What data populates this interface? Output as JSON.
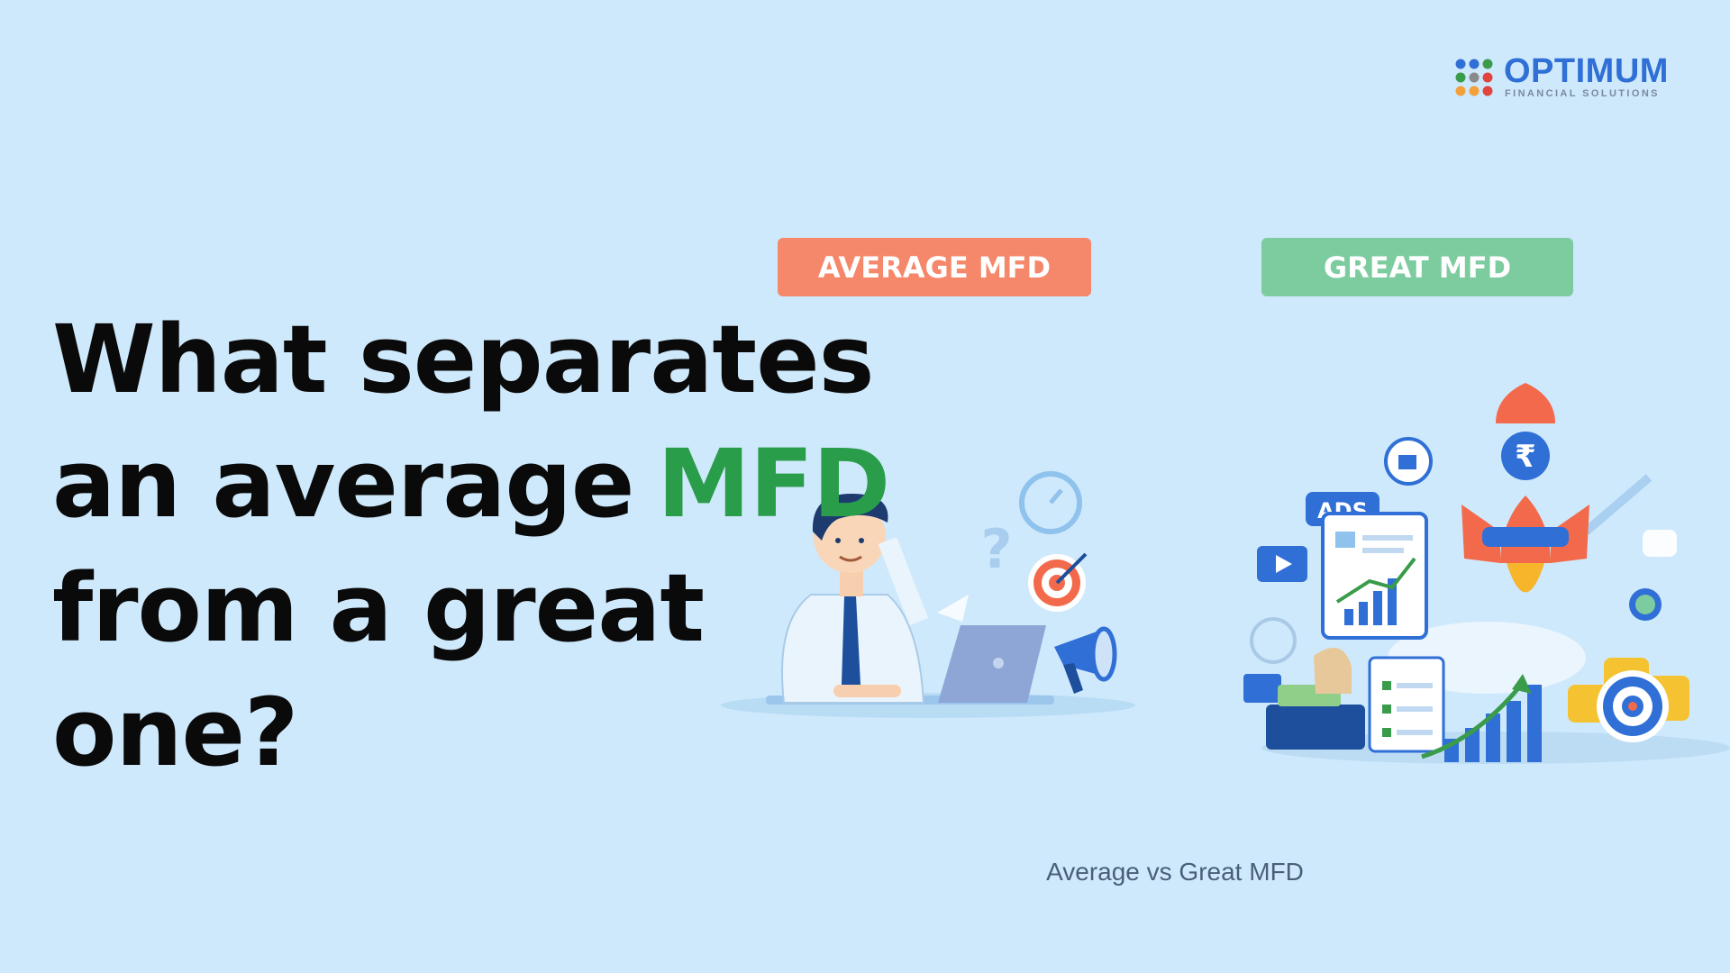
{
  "logo": {
    "name": "OPTIMUM",
    "tagline": "FINANCIAL SOLUTIONS"
  },
  "heading": {
    "lines": [
      "What separates",
      "an average",
      "from a great",
      "one?"
    ],
    "highlight": "MFD"
  },
  "labels": {
    "average": "AVERAGE MFD",
    "great": "GREAT MFD"
  },
  "illustration": {
    "question": "?",
    "ads": "ADS",
    "rupee": "₹"
  },
  "caption": "Average vs Great MFD"
}
